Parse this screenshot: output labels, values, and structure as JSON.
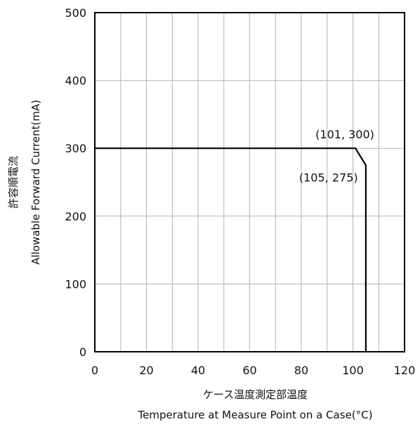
{
  "chart_data": {
    "type": "line",
    "title": "",
    "xlabel_jp": "ケース温度測定部温度",
    "xlabel": "Temperature at Measure Point on a Case(°C)",
    "ylabel_jp": "許容順電流",
    "ylabel": "Allowable Forward Current(mA)",
    "xlim": [
      0,
      120
    ],
    "ylim": [
      0,
      500
    ],
    "x_ticks": [
      0,
      20,
      40,
      60,
      80,
      100,
      120
    ],
    "y_ticks": [
      0,
      100,
      200,
      300,
      400,
      500
    ],
    "x_grid_step": 10,
    "y_grid_step": 100,
    "grid": true,
    "series": [
      {
        "x": [
          0,
          101,
          105,
          105
        ],
        "y": [
          300,
          300,
          275,
          0
        ]
      }
    ],
    "annotations": [
      {
        "text": "(101, 300)",
        "x": 101,
        "y": 300
      },
      {
        "text": "(105, 275)",
        "x": 105,
        "y": 275
      }
    ],
    "colors": {
      "line": "#000000",
      "grid": "#b3b3b3",
      "frame": "#000000"
    }
  }
}
